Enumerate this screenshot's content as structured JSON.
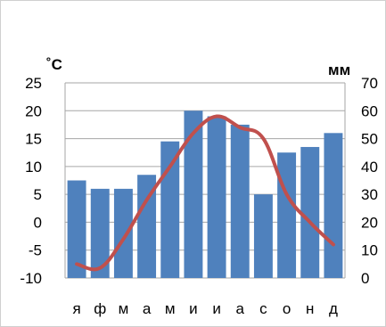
{
  "chart_data": {
    "type": "bar+line",
    "title": "",
    "categories": [
      "я",
      "ф",
      "м",
      "а",
      "м",
      "и",
      "и",
      "а",
      "с",
      "о",
      "н",
      "д"
    ],
    "left_axis": {
      "unit_label": "˚С",
      "range": [
        -10,
        25
      ],
      "ticks": [
        "25",
        "20",
        "15",
        "10",
        "5",
        "0",
        "-5",
        "-10"
      ]
    },
    "right_axis": {
      "unit_label": "мм",
      "range": [
        0,
        70
      ],
      "ticks": [
        "70",
        "60",
        "50",
        "40",
        "30",
        "20",
        "10",
        "0"
      ]
    },
    "grid": true,
    "series": [
      {
        "type": "bar",
        "axis": "right",
        "color": "#4f81bd",
        "values": [
          35,
          32,
          32,
          37,
          49,
          60,
          58,
          55,
          30,
          45,
          47,
          52
        ]
      },
      {
        "type": "line",
        "axis": "left",
        "color": "#c0504d",
        "values": [
          -7.5,
          -8.2,
          -3.0,
          4.0,
          10.0,
          16.0,
          19.0,
          17.0,
          15.0,
          5.0,
          0.0,
          -4.0
        ]
      }
    ]
  }
}
